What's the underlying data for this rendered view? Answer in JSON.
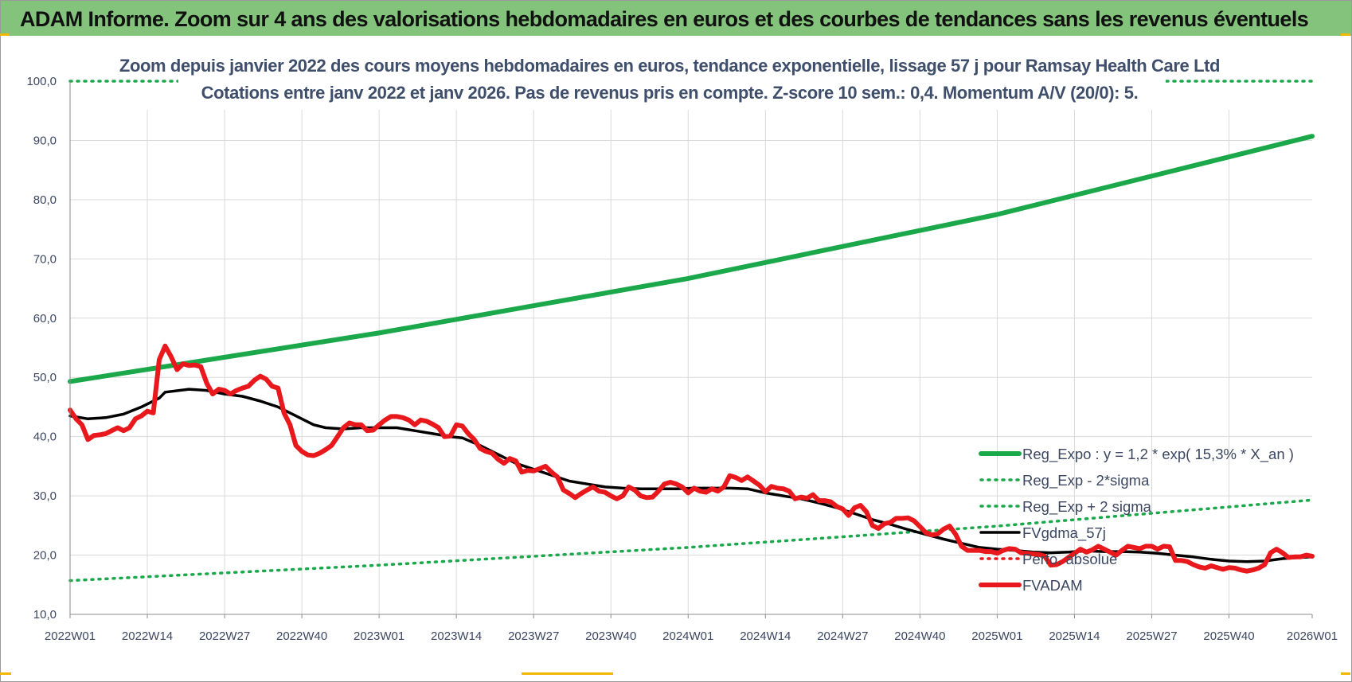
{
  "header": {
    "title": "ADAM Informe. Zoom sur 4 ans des valorisations hebdomadaires en euros et des courbes de tendances sans les revenus éventuels"
  },
  "chart_data": {
    "type": "line",
    "title": "Zoom depuis janvier 2022 des cours moyens hebdomadaires en euros, tendance exponentielle, lissage 57 j pour Ramsay Health Care Ltd",
    "subtitle": "Cotations entre janv 2022 et janv 2026. Pas de revenus pris en compte. Z-score 10 sem.: 0,4. Momentum A/V (20/0): 5.",
    "xlabel": "",
    "ylabel": "",
    "ylim": [
      10,
      100
    ],
    "yticks": [
      "10,0",
      "20,0",
      "30,0",
      "40,0",
      "50,0",
      "60,0",
      "70,0",
      "80,0",
      "90,0",
      "100,0"
    ],
    "x_tick_labels": [
      "2022W01",
      "2022W14",
      "2022W27",
      "2022W40",
      "2023W01",
      "2023W14",
      "2023W27",
      "2023W40",
      "2024W01",
      "2024W14",
      "2024W27",
      "2024W40",
      "2025W01",
      "2025W14",
      "2025W27",
      "2025W40",
      "2026W01"
    ],
    "x_week_range": [
      0,
      209
    ],
    "grid": true,
    "legend_position": "bottom-right",
    "series": [
      {
        "name": "Reg_Expo : y = 1,2 * exp( 15,3% *  X_an )",
        "color": "#1aa84a",
        "style": "solid-thick",
        "points": [
          [
            0,
            49.3
          ],
          [
            52,
            57.5
          ],
          [
            104,
            66.7
          ],
          [
            156,
            77.5
          ],
          [
            209,
            90.7
          ]
        ]
      },
      {
        "name": "Reg_Exp - 2*sigma",
        "color": "#1aa84a",
        "style": "dotted",
        "points": [
          [
            0,
            15.7
          ],
          [
            52,
            18.3
          ],
          [
            104,
            21.3
          ],
          [
            156,
            24.9
          ],
          [
            209,
            29.3
          ]
        ]
      },
      {
        "name": "Reg_Exp + 2 sigma",
        "color": "#1aa84a",
        "style": "dotted",
        "points": [
          [
            0,
            100.0
          ],
          [
            209,
            100.0
          ]
        ]
      },
      {
        "name": "FVgdma_57j",
        "color": "#000000",
        "style": "solid",
        "points": [
          [
            0,
            43.5
          ],
          [
            3,
            43
          ],
          [
            6,
            43.2
          ],
          [
            9,
            43.8
          ],
          [
            12,
            45
          ],
          [
            15,
            46.5
          ],
          [
            16,
            47.5
          ],
          [
            20,
            48
          ],
          [
            23,
            47.8
          ],
          [
            26,
            47.2
          ],
          [
            29,
            46.8
          ],
          [
            32,
            46
          ],
          [
            35,
            45
          ],
          [
            38,
            43.5
          ],
          [
            41,
            42
          ],
          [
            43,
            41.5
          ],
          [
            46,
            41.3
          ],
          [
            49,
            41.5
          ],
          [
            52,
            41.5
          ],
          [
            55,
            41.5
          ],
          [
            58,
            41
          ],
          [
            61,
            40.5
          ],
          [
            64,
            40
          ],
          [
            66,
            39.8
          ],
          [
            69,
            38.5
          ],
          [
            72,
            37
          ],
          [
            75,
            35.5
          ],
          [
            78,
            34.5
          ],
          [
            81,
            33.5
          ],
          [
            84,
            32.5
          ],
          [
            87,
            32
          ],
          [
            90,
            31.5
          ],
          [
            93,
            31.3
          ],
          [
            96,
            31.2
          ],
          [
            99,
            31.2
          ],
          [
            102,
            31.2
          ],
          [
            105,
            31.3
          ],
          [
            108,
            31.3
          ],
          [
            111,
            31.3
          ],
          [
            114,
            31.2
          ],
          [
            117,
            30.5
          ],
          [
            120,
            30
          ],
          [
            123,
            29.5
          ],
          [
            126,
            28.8
          ],
          [
            129,
            28
          ],
          [
            132,
            27
          ],
          [
            135,
            26
          ],
          [
            138,
            25.2
          ],
          [
            141,
            24.3
          ],
          [
            144,
            23.5
          ],
          [
            147,
            22.7
          ],
          [
            150,
            22
          ],
          [
            153,
            21.3
          ],
          [
            156,
            21
          ],
          [
            159,
            20.8
          ],
          [
            162,
            20.5
          ],
          [
            165,
            20.4
          ],
          [
            168,
            20.5
          ],
          [
            171,
            20.7
          ],
          [
            174,
            20.6
          ],
          [
            177,
            20.6
          ],
          [
            180,
            20.5
          ],
          [
            183,
            20.3
          ],
          [
            186,
            20
          ],
          [
            189,
            19.7
          ],
          [
            192,
            19.3
          ],
          [
            195,
            19
          ],
          [
            198,
            18.9
          ],
          [
            201,
            19
          ],
          [
            204,
            19.4
          ],
          [
            207,
            19.6
          ],
          [
            209,
            19.7
          ]
        ]
      },
      {
        "name": "Perfo. absolue",
        "color": "#e8181c",
        "style": "dotted",
        "points": []
      },
      {
        "name": "FVADAM",
        "color": "#e8181c",
        "style": "solid-thick",
        "points": [
          [
            0,
            44.5
          ],
          [
            1,
            43
          ],
          [
            2,
            42
          ],
          [
            3,
            39.5
          ],
          [
            4,
            40.2
          ],
          [
            5,
            40.3
          ],
          [
            6,
            40.5
          ],
          [
            7,
            41
          ],
          [
            8,
            41.5
          ],
          [
            9,
            41
          ],
          [
            10,
            41.5
          ],
          [
            11,
            43
          ],
          [
            12,
            43.5
          ],
          [
            13,
            44.3
          ],
          [
            14,
            44
          ],
          [
            15,
            53
          ],
          [
            16,
            55.3
          ],
          [
            17,
            53.5
          ],
          [
            18,
            51.3
          ],
          [
            19,
            52.3
          ],
          [
            20,
            52
          ],
          [
            21,
            52.1
          ],
          [
            22,
            51.8
          ],
          [
            23,
            49
          ],
          [
            24,
            47.2
          ],
          [
            25,
            48
          ],
          [
            26,
            47.8
          ],
          [
            27,
            47.2
          ],
          [
            28,
            47.8
          ],
          [
            29,
            48.2
          ],
          [
            30,
            48.5
          ],
          [
            31,
            49.5
          ],
          [
            32,
            50.2
          ],
          [
            33,
            49.7
          ],
          [
            34,
            48.5
          ],
          [
            35,
            48.2
          ],
          [
            36,
            44
          ],
          [
            37,
            42
          ],
          [
            38,
            38.5
          ],
          [
            39,
            37.5
          ],
          [
            40,
            36.9
          ],
          [
            41,
            36.8
          ],
          [
            42,
            37.2
          ],
          [
            43,
            37.8
          ],
          [
            44,
            38.5
          ],
          [
            45,
            40
          ],
          [
            46,
            41.5
          ],
          [
            47,
            42.3
          ],
          [
            48,
            42
          ],
          [
            49,
            42
          ],
          [
            50,
            41
          ],
          [
            51,
            41.1
          ],
          [
            52,
            42
          ],
          [
            53,
            42.8
          ],
          [
            54,
            43.4
          ],
          [
            55,
            43.4
          ],
          [
            56,
            43.2
          ],
          [
            57,
            42.8
          ],
          [
            58,
            42
          ],
          [
            59,
            42.8
          ],
          [
            60,
            42.6
          ],
          [
            61,
            42.1
          ],
          [
            62,
            41.5
          ],
          [
            63,
            40
          ],
          [
            64,
            40.1
          ],
          [
            65,
            42
          ],
          [
            66,
            41.8
          ],
          [
            67,
            40.5
          ],
          [
            68,
            39.5
          ],
          [
            69,
            38
          ],
          [
            70,
            37.5
          ],
          [
            71,
            37.2
          ],
          [
            72,
            36.2
          ],
          [
            73,
            35.5
          ],
          [
            74,
            36.3
          ],
          [
            75,
            35.9
          ],
          [
            76,
            34
          ],
          [
            77,
            34.3
          ],
          [
            78,
            34.2
          ],
          [
            79,
            34.6
          ],
          [
            80,
            35
          ],
          [
            81,
            34
          ],
          [
            82,
            33.2
          ],
          [
            83,
            31
          ],
          [
            84,
            30.4
          ],
          [
            85,
            29.7
          ],
          [
            86,
            30.4
          ],
          [
            87,
            31
          ],
          [
            88,
            31.5
          ],
          [
            89,
            30.8
          ],
          [
            90,
            30.6
          ],
          [
            91,
            30
          ],
          [
            92,
            29.5
          ],
          [
            93,
            30
          ],
          [
            94,
            31.5
          ],
          [
            95,
            31
          ],
          [
            96,
            30
          ],
          [
            97,
            29.7
          ],
          [
            98,
            29.8
          ],
          [
            99,
            30.8
          ],
          [
            100,
            32
          ],
          [
            101,
            32.3
          ],
          [
            102,
            32
          ],
          [
            103,
            31.5
          ],
          [
            104,
            30.5
          ],
          [
            105,
            31.3
          ],
          [
            106,
            30.8
          ],
          [
            107,
            30.6
          ],
          [
            108,
            31.2
          ],
          [
            109,
            30.8
          ],
          [
            110,
            31.5
          ],
          [
            111,
            33.4
          ],
          [
            112,
            33.1
          ],
          [
            113,
            32.6
          ],
          [
            114,
            33.2
          ],
          [
            115,
            32.5
          ],
          [
            116,
            31.8
          ],
          [
            117,
            30.7
          ],
          [
            118,
            31.6
          ],
          [
            119,
            31.3
          ],
          [
            120,
            31.2
          ],
          [
            121,
            30.8
          ],
          [
            122,
            29.5
          ],
          [
            123,
            29.8
          ],
          [
            124,
            29.6
          ],
          [
            125,
            30.2
          ],
          [
            126,
            29.2
          ],
          [
            127,
            29.2
          ],
          [
            128,
            29
          ],
          [
            129,
            28.2
          ],
          [
            130,
            27.8
          ],
          [
            131,
            26.7
          ],
          [
            132,
            28
          ],
          [
            133,
            28.4
          ],
          [
            134,
            27.3
          ],
          [
            135,
            25
          ],
          [
            136,
            24.5
          ],
          [
            137,
            25.3
          ],
          [
            138,
            25.5
          ],
          [
            139,
            26.2
          ],
          [
            140,
            26.2
          ],
          [
            141,
            26.3
          ],
          [
            142,
            25.8
          ],
          [
            143,
            24.8
          ],
          [
            144,
            23.8
          ],
          [
            145,
            23.4
          ],
          [
            146,
            23.6
          ],
          [
            147,
            24.4
          ],
          [
            148,
            24.9
          ],
          [
            149,
            23.5
          ],
          [
            150,
            21.5
          ],
          [
            151,
            20.8
          ],
          [
            152,
            20.8
          ],
          [
            153,
            20.8
          ],
          [
            154,
            20.6
          ],
          [
            155,
            20.6
          ],
          [
            156,
            20.3
          ],
          [
            157,
            20.8
          ],
          [
            158,
            21.1
          ],
          [
            159,
            21
          ],
          [
            160,
            20.4
          ],
          [
            161,
            20.3
          ],
          [
            162,
            20.2
          ],
          [
            163,
            20.1
          ],
          [
            164,
            19.8
          ],
          [
            165,
            18.3
          ],
          [
            166,
            18.4
          ],
          [
            167,
            18.9
          ],
          [
            168,
            19.6
          ],
          [
            169,
            20.3
          ],
          [
            170,
            21
          ],
          [
            171,
            20.5
          ],
          [
            172,
            20.9
          ],
          [
            173,
            21.5
          ],
          [
            174,
            21
          ],
          [
            175,
            20.5
          ],
          [
            176,
            20
          ],
          [
            177,
            20.8
          ],
          [
            178,
            21.5
          ],
          [
            179,
            21.3
          ],
          [
            180,
            21.1
          ],
          [
            181,
            21.5
          ],
          [
            182,
            21.5
          ],
          [
            183,
            21
          ],
          [
            184,
            21.5
          ],
          [
            185,
            21.4
          ],
          [
            186,
            19.1
          ],
          [
            187,
            19.1
          ],
          [
            188,
            18.9
          ],
          [
            189,
            18.4
          ],
          [
            190,
            18
          ],
          [
            191,
            17.8
          ],
          [
            192,
            18.2
          ],
          [
            193,
            17.9
          ],
          [
            194,
            17.6
          ],
          [
            195,
            17.9
          ],
          [
            196,
            17.8
          ],
          [
            197,
            17.5
          ],
          [
            198,
            17.3
          ],
          [
            199,
            17.5
          ],
          [
            200,
            17.8
          ],
          [
            201,
            18.4
          ],
          [
            202,
            20.4
          ],
          [
            203,
            21
          ],
          [
            204,
            20.4
          ],
          [
            205,
            19.6
          ],
          [
            206,
            19.7
          ],
          [
            207,
            19.7
          ],
          [
            208,
            20
          ],
          [
            209,
            19.8
          ]
        ]
      }
    ]
  }
}
